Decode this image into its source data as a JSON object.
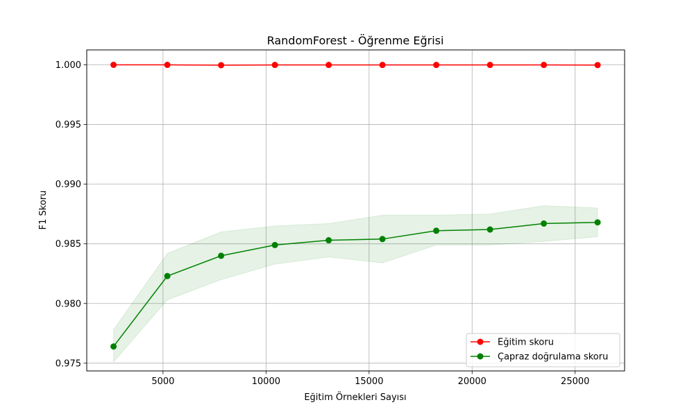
{
  "chart_data": {
    "type": "line",
    "title": "RandomForest - Öğrenme Eğrisi",
    "xlabel": "Eğitim Örnekleri Sayısı",
    "ylabel": "F1 Skoru",
    "xlim": [
      1300,
      27400
    ],
    "ylim": [
      0.97435,
      1.00125
    ],
    "grid": true,
    "legend_position": "lower right",
    "x_ticks": [
      5000,
      10000,
      15000,
      20000,
      25000
    ],
    "x_tick_labels": [
      "5000",
      "10000",
      "15000",
      "20000",
      "25000"
    ],
    "y_ticks": [
      0.975,
      0.98,
      0.985,
      0.99,
      0.995,
      1.0
    ],
    "y_tick_labels": [
      "0.975",
      "0.980",
      "0.985",
      "0.990",
      "0.995",
      "1.000"
    ],
    "x": [
      2600,
      5210,
      7820,
      10430,
      13040,
      15650,
      18260,
      20870,
      23480,
      26090
    ],
    "series": [
      {
        "name": "Eğitim skoru",
        "color": "#ff0000",
        "values": [
          1.0,
          1.0,
          0.99997,
          0.99999,
          0.99999,
          0.99999,
          0.99999,
          0.99999,
          0.99999,
          0.99998
        ],
        "band_lower": [
          1.0,
          1.0,
          0.99997,
          0.99999,
          0.99999,
          0.99999,
          0.99999,
          0.99999,
          0.99999,
          0.99998
        ],
        "band_upper": [
          1.0,
          1.0,
          0.99997,
          0.99999,
          0.99999,
          0.99999,
          0.99999,
          0.99999,
          0.99999,
          0.99998
        ]
      },
      {
        "name": "Çapraz doğrulama skoru",
        "color": "#008000",
        "band_color": "#008000",
        "values": [
          0.9764,
          0.9823,
          0.984,
          0.9849,
          0.9853,
          0.9854,
          0.9861,
          0.9862,
          0.9867,
          0.9868
        ],
        "band_lower": [
          0.9751,
          0.9803,
          0.982,
          0.9833,
          0.9839,
          0.9834,
          0.9849,
          0.9849,
          0.9852,
          0.9856
        ],
        "band_upper": [
          0.9778,
          0.9842,
          0.986,
          0.9865,
          0.9867,
          0.9874,
          0.9874,
          0.9875,
          0.9882,
          0.988
        ]
      }
    ]
  }
}
